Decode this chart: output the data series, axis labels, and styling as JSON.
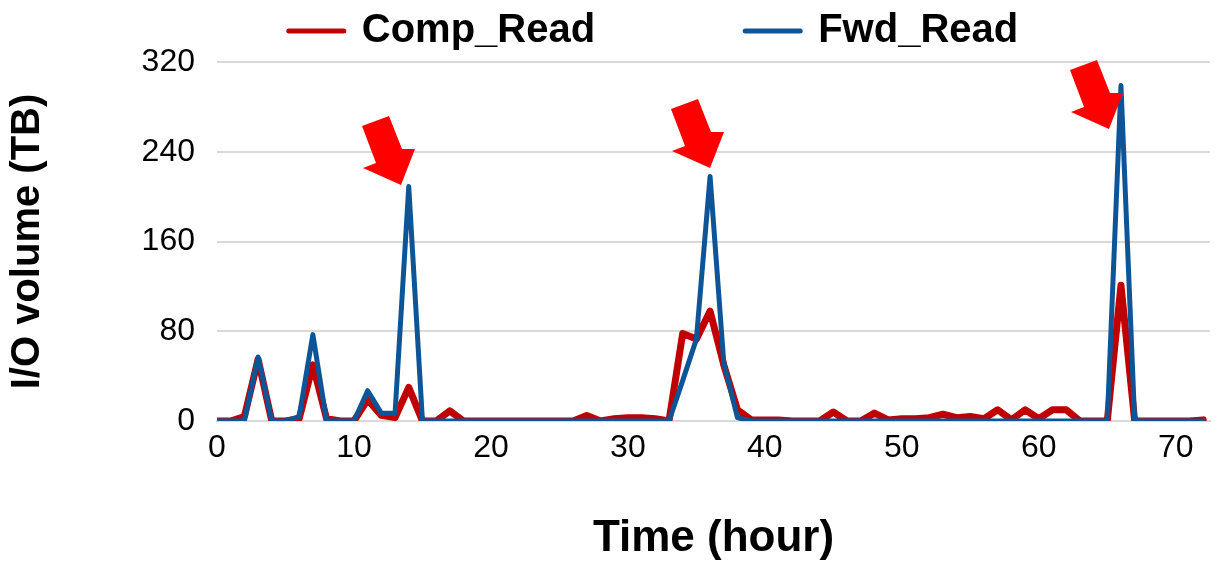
{
  "chart_data": {
    "type": "line",
    "xlabel": "Time (hour)",
    "ylabel": "I/O volume (TB)",
    "x": [
      0,
      1,
      2,
      3,
      4,
      5,
      6,
      7,
      8,
      9,
      10,
      11,
      12,
      13,
      14,
      15,
      16,
      17,
      18,
      19,
      20,
      21,
      22,
      23,
      24,
      25,
      26,
      27,
      28,
      29,
      30,
      31,
      32,
      33,
      34,
      35,
      36,
      37,
      38,
      39,
      40,
      41,
      42,
      43,
      44,
      45,
      46,
      47,
      48,
      49,
      50,
      51,
      52,
      53,
      54,
      55,
      56,
      57,
      58,
      59,
      60,
      61,
      62,
      63,
      64,
      65,
      66,
      67,
      68,
      69,
      70,
      71,
      72
    ],
    "series": [
      {
        "name": "Comp_Read",
        "color": "#c00000",
        "values": [
          0,
          0,
          4,
          55,
          0,
          0,
          2,
          50,
          2,
          0,
          0,
          19,
          5,
          3,
          30,
          0,
          0,
          9,
          0,
          0,
          0,
          0,
          0,
          0,
          0,
          0,
          0,
          5,
          0,
          2,
          3,
          3,
          2,
          0,
          78,
          73,
          98,
          50,
          10,
          1,
          1,
          1,
          0,
          0,
          0,
          8,
          0,
          0,
          7,
          1,
          2,
          2,
          3,
          6,
          3,
          4,
          2,
          10,
          1,
          10,
          2,
          10,
          10,
          0,
          0,
          0,
          121,
          0,
          0,
          0,
          0,
          0,
          1
        ]
      },
      {
        "name": "Fwd_Read",
        "color": "#0e5597",
        "values": [
          0,
          0,
          0,
          57,
          0,
          0,
          4,
          77,
          0,
          0,
          0,
          27,
          7,
          7,
          209,
          0,
          0,
          0,
          0,
          0,
          0,
          0,
          0,
          0,
          0,
          0,
          0,
          0,
          0,
          0,
          0,
          0,
          0,
          0,
          36,
          73,
          218,
          52,
          3,
          0,
          0,
          0,
          0,
          0,
          0,
          0,
          0,
          0,
          0,
          0,
          0,
          0,
          0,
          0,
          0,
          0,
          0,
          0,
          0,
          0,
          0,
          0,
          0,
          0,
          0,
          0,
          299,
          0,
          0,
          0,
          0,
          0,
          0
        ]
      }
    ],
    "xlim": [
      0,
      72.5
    ],
    "xticks": [
      0,
      10,
      20,
      30,
      40,
      50,
      60,
      70
    ],
    "ylim": [
      0,
      320
    ],
    "yticks": [
      0,
      80,
      160,
      240,
      320
    ],
    "grid": "y",
    "legend": "top",
    "marker": "none",
    "line_style": "solid"
  }
}
